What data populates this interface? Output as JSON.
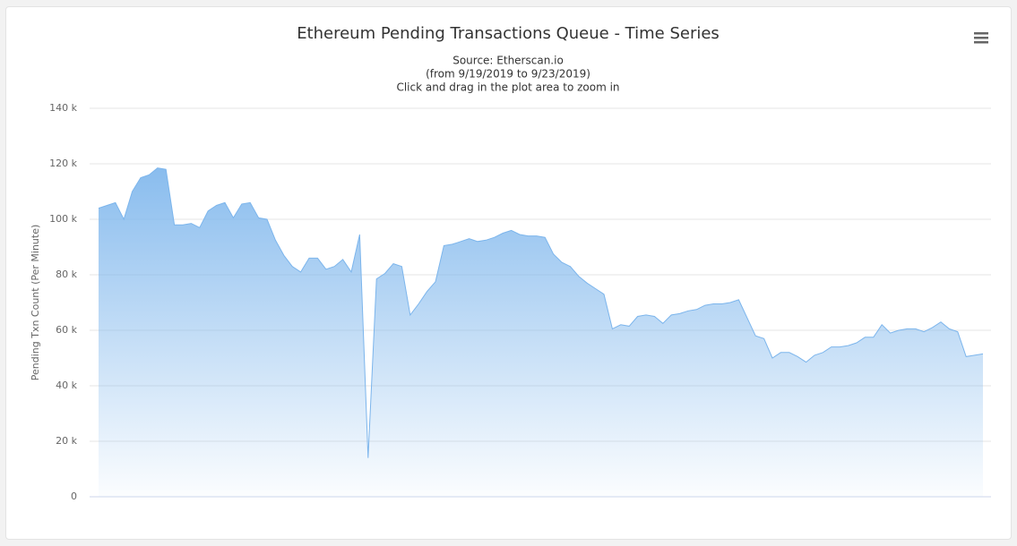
{
  "chart_data": {
    "type": "area",
    "title": "Ethereum Pending Transactions Queue - Time Series",
    "subtitle": [
      "Source: Etherscan.io",
      "(from 9/19/2019 to 9/23/2019)",
      "Click and drag in the plot area to zoom in"
    ],
    "ylabel": "Pending Txn Count (Per Minute)",
    "color": "#7cb5ec",
    "grid": true,
    "ylim": [
      0,
      140000
    ],
    "yticks": [
      0,
      {
        "value": 20000,
        "label": "20 k"
      },
      {
        "value": 40000,
        "label": "40 k"
      },
      {
        "value": 60000,
        "label": "60 k"
      },
      {
        "value": 80000,
        "label": "80 k"
      },
      {
        "value": 100000,
        "label": "100 k"
      },
      {
        "value": 120000,
        "label": "120 k"
      },
      {
        "value": 140000,
        "label": "140 k"
      }
    ],
    "values": [
      104000,
      105000,
      106000,
      100000,
      110000,
      115000,
      116000,
      118500,
      118000,
      98000,
      98000,
      98500,
      97000,
      103000,
      105000,
      106000,
      100500,
      105500,
      106000,
      100500,
      100000,
      92500,
      87000,
      83000,
      81000,
      86000,
      86000,
      82000,
      83000,
      85500,
      81000,
      94500,
      14000,
      78500,
      80500,
      84000,
      83000,
      65500,
      69500,
      74000,
      77500,
      90500,
      91000,
      92000,
      93000,
      92000,
      92500,
      93500,
      95000,
      96000,
      94500,
      94000,
      94000,
      93500,
      87500,
      84500,
      83000,
      79500,
      77000,
      75000,
      73000,
      60500,
      62000,
      61500,
      65000,
      65500,
      65000,
      62500,
      65500,
      66000,
      67000,
      67500,
      69000,
      69500,
      69500,
      70000,
      71000,
      64500,
      58000,
      57000,
      50000,
      52000,
      52000,
      50500,
      48500,
      51000,
      52000,
      54000,
      54000,
      54500,
      55500,
      57500,
      57500,
      62000,
      59000,
      60000,
      60500,
      60500,
      59500,
      61000,
      63000,
      60500,
      59500,
      50500,
      51000,
      51500
    ]
  }
}
